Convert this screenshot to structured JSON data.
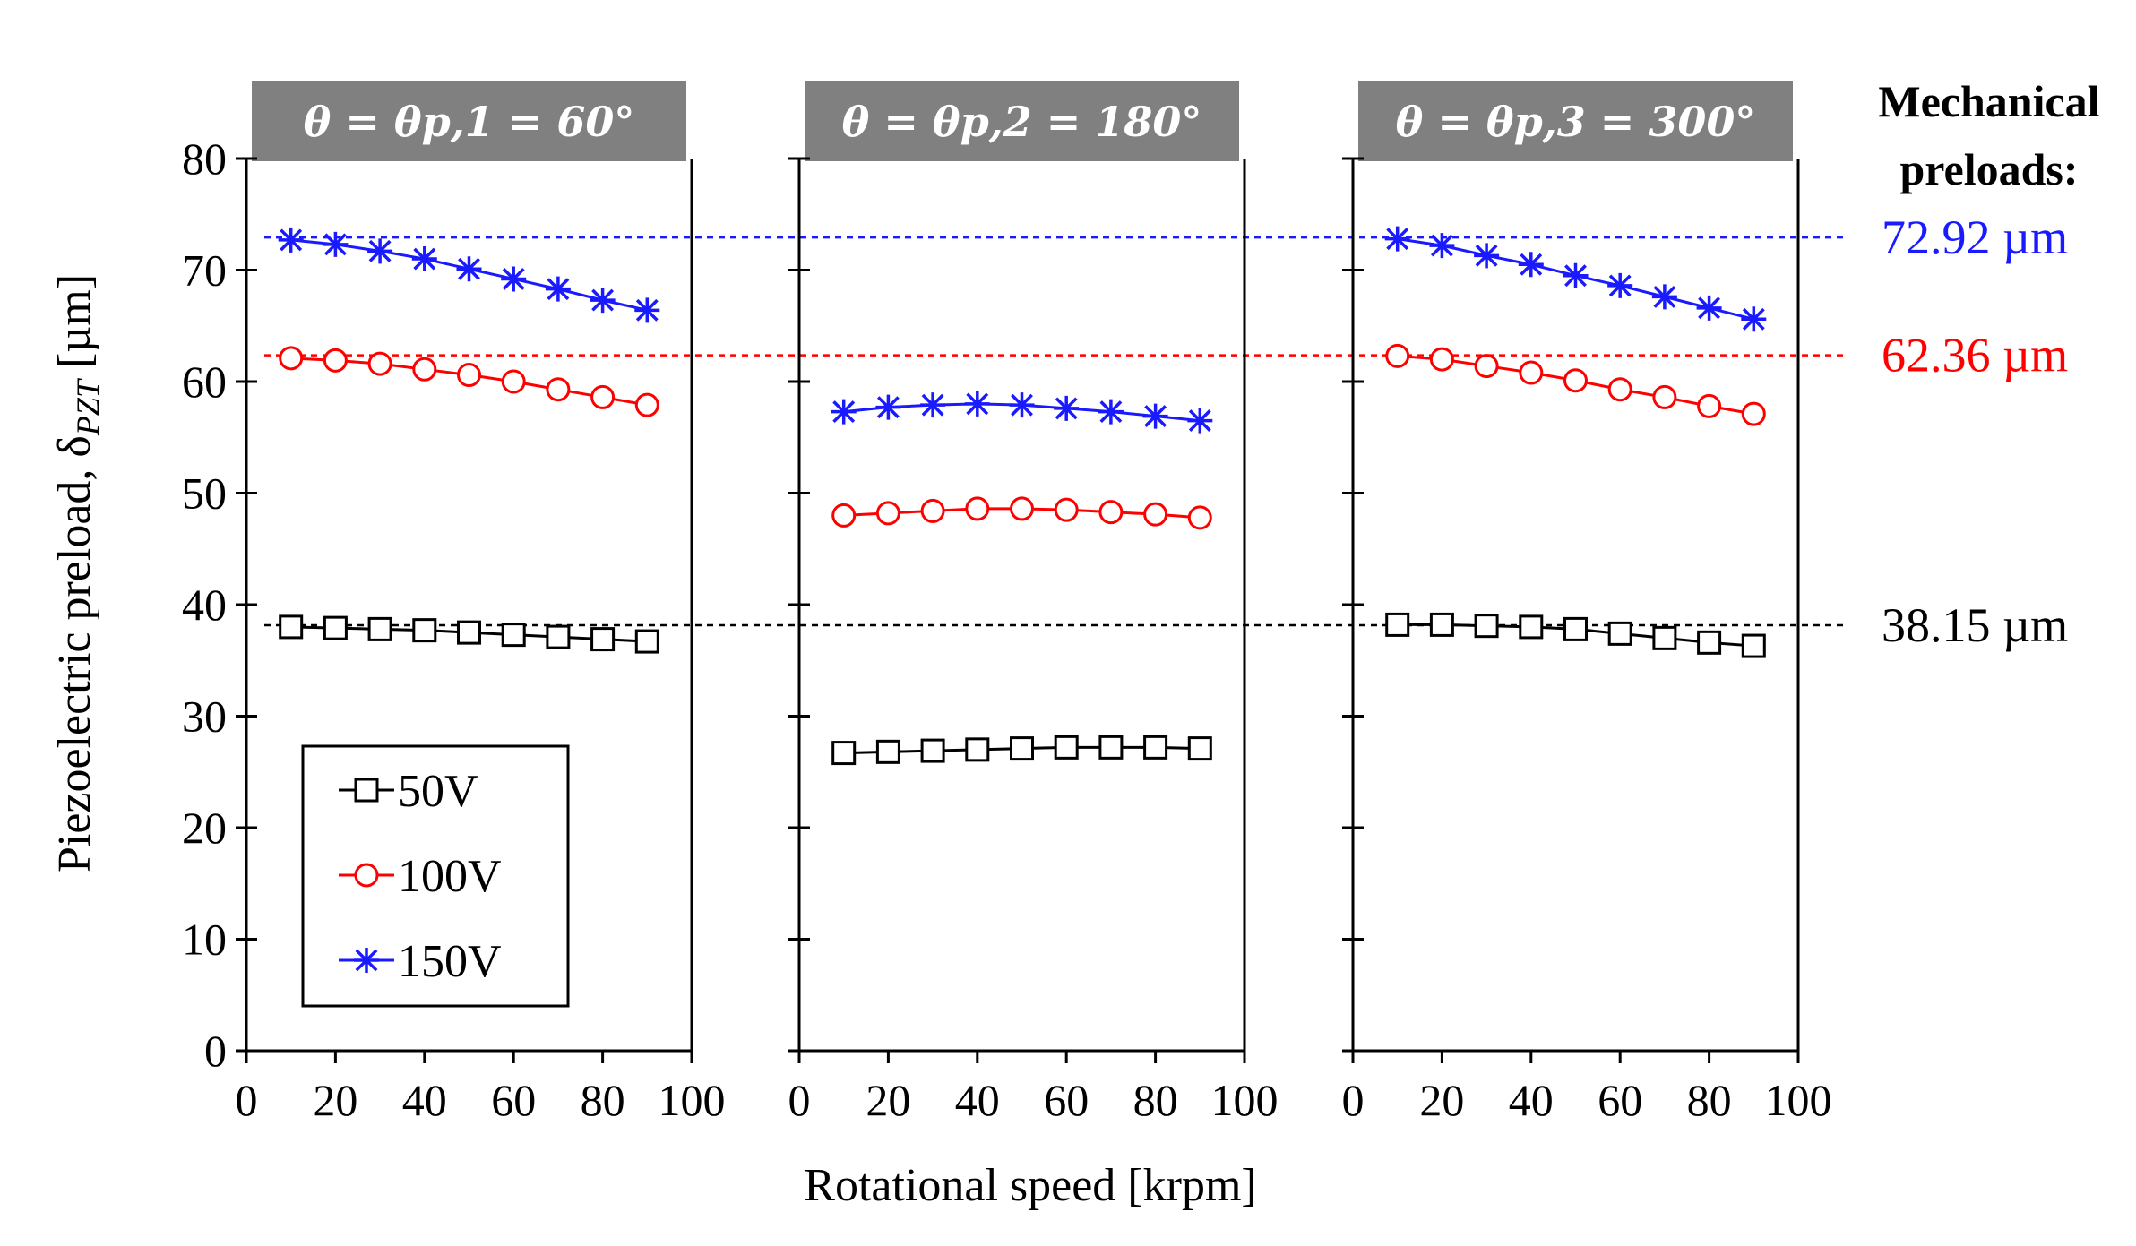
{
  "chart_data": {
    "type": "line",
    "ylabel": "Piezoelectric preload, δ",
    "ylabel_subscript": "PZT",
    "ylabel_unit": " [µm]",
    "xlabel": "Rotational speed [krpm]",
    "xlim": [
      0,
      100
    ],
    "ylim": [
      0,
      80
    ],
    "x_ticks": [
      "0",
      "20",
      "40",
      "60",
      "80",
      "100"
    ],
    "y_ticks": [
      "0",
      "10",
      "20",
      "30",
      "40",
      "50",
      "60",
      "70",
      "80"
    ],
    "x": [
      10,
      20,
      30,
      40,
      50,
      60,
      70,
      80,
      90
    ],
    "legend": [
      {
        "name": "50V",
        "color": "#000000",
        "marker": "square"
      },
      {
        "name": "100V",
        "color": "#ff0000",
        "marker": "circle"
      },
      {
        "name": "150V",
        "color": "#1a1aff",
        "marker": "star"
      }
    ],
    "panels": [
      {
        "title": "θ = θp,1 = 60°",
        "series": [
          {
            "name": "50V",
            "values": [
              38.0,
              37.9,
              37.8,
              37.7,
              37.5,
              37.3,
              37.1,
              36.9,
              36.7
            ]
          },
          {
            "name": "100V",
            "values": [
              62.1,
              61.9,
              61.6,
              61.1,
              60.6,
              60.0,
              59.3,
              58.6,
              57.9
            ]
          },
          {
            "name": "150V",
            "values": [
              72.7,
              72.3,
              71.7,
              71.0,
              70.1,
              69.2,
              68.3,
              67.3,
              66.4
            ]
          }
        ]
      },
      {
        "title": "θ = θp,2 = 180°",
        "series": [
          {
            "name": "50V",
            "values": [
              26.7,
              26.8,
              26.9,
              27.0,
              27.1,
              27.2,
              27.2,
              27.2,
              27.1
            ]
          },
          {
            "name": "100V",
            "values": [
              48.0,
              48.2,
              48.4,
              48.6,
              48.6,
              48.5,
              48.3,
              48.1,
              47.8
            ]
          },
          {
            "name": "150V",
            "values": [
              57.3,
              57.7,
              57.9,
              58.0,
              57.9,
              57.6,
              57.3,
              56.9,
              56.5
            ]
          }
        ]
      },
      {
        "title": "θ = θp,3 = 300°",
        "series": [
          {
            "name": "50V",
            "values": [
              38.2,
              38.2,
              38.1,
              38.0,
              37.8,
              37.4,
              37.0,
              36.6,
              36.3
            ]
          },
          {
            "name": "100V",
            "values": [
              62.3,
              62.0,
              61.4,
              60.8,
              60.1,
              59.3,
              58.6,
              57.8,
              57.1
            ]
          },
          {
            "name": "150V",
            "values": [
              72.8,
              72.2,
              71.3,
              70.5,
              69.5,
              68.6,
              67.6,
              66.6,
              65.6
            ]
          }
        ]
      }
    ],
    "reference_lines": [
      {
        "label": "72.92 µm",
        "value": 72.92,
        "color": "#1a1aff"
      },
      {
        "label": "62.36 µm",
        "value": 62.36,
        "color": "#ff0000"
      },
      {
        "label": "38.15 µm",
        "value": 38.15,
        "color": "#000000"
      }
    ],
    "reference_heading": [
      "Mechanical",
      "preloads:"
    ],
    "panel_title_bg": "#808080"
  }
}
